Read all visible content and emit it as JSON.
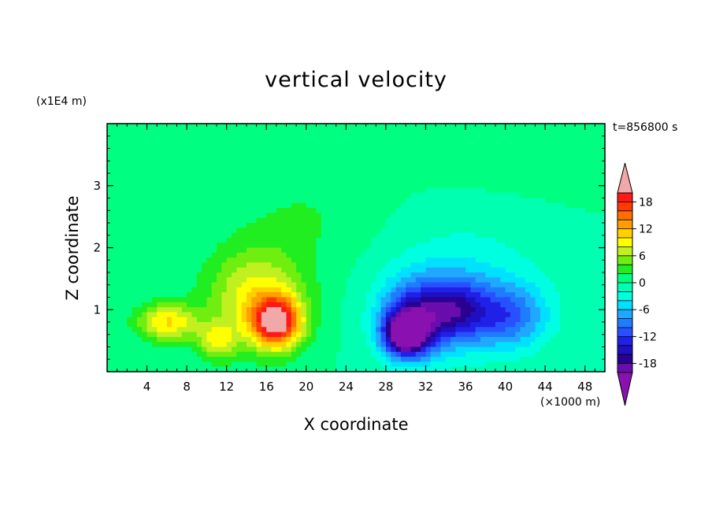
{
  "chart_data": {
    "type": "heatmap",
    "title": "vertical velocity",
    "xlabel": "X coordinate",
    "ylabel": "Z coordinate",
    "x_unit": "(×1000 m)",
    "y_unit": "(x1E4 m)",
    "time_label": "t=856800 s",
    "xlim": [
      0,
      50
    ],
    "ylim": [
      0,
      4
    ],
    "x_ticks": [
      4,
      8,
      12,
      16,
      20,
      24,
      28,
      32,
      36,
      40,
      44,
      48
    ],
    "y_ticks": [
      1,
      2,
      3
    ],
    "colorbar": {
      "levels": [
        -20,
        -18,
        -16,
        -14,
        -12,
        -10,
        -8,
        -6,
        -4,
        -2,
        0,
        2,
        4,
        6,
        8,
        10,
        12,
        14,
        16,
        18,
        20
      ],
      "colors": [
        "#6a0dad",
        "#2a0090",
        "#1e10c0",
        "#2020e8",
        "#2850ff",
        "#1e7cff",
        "#20a8ff",
        "#00e0ff",
        "#00ffe0",
        "#00ffb0",
        "#00ff80",
        "#20ee20",
        "#70ee10",
        "#c0f020",
        "#ffff00",
        "#ffd000",
        "#ffa000",
        "#ff7000",
        "#ff3a00",
        "#ff1818"
      ],
      "under_color": "#8a10b0",
      "over_color": "#f0a8a8",
      "tick_labels": [
        "-18",
        "-12",
        "-6",
        "0",
        "6",
        "12",
        "18"
      ],
      "tick_values": [
        -18,
        -12,
        -6,
        0,
        6,
        12,
        18
      ]
    },
    "features": [
      {
        "x": 17,
        "z": 0.8,
        "peak": 19,
        "sx": 2.4,
        "sz": 0.4
      },
      {
        "x": 15,
        "z": 1.2,
        "peak": 9,
        "sx": 5,
        "sz": 0.8
      },
      {
        "x": 6,
        "z": 0.8,
        "peak": 10,
        "sx": 3,
        "sz": 0.3
      },
      {
        "x": 11,
        "z": 0.5,
        "peak": 7,
        "sx": 2,
        "sz": 0.3
      },
      {
        "x": 20,
        "z": 2.5,
        "peak": 2,
        "sx": 7,
        "sz": 0.8
      },
      {
        "x": 30,
        "z": 0.6,
        "peak": -20,
        "sx": 2.2,
        "sz": 0.35
      },
      {
        "x": 31,
        "z": 0.9,
        "peak": -12,
        "sx": 3.5,
        "sz": 0.6
      },
      {
        "x": 35,
        "z": 1.0,
        "peak": -10,
        "sx": 3,
        "sz": 0.5
      },
      {
        "x": 40,
        "z": 0.9,
        "peak": -9,
        "sx": 4,
        "sz": 0.5
      },
      {
        "x": 36,
        "z": 1.3,
        "peak": -4,
        "sx": 8,
        "sz": 1.1
      },
      {
        "x": 40,
        "z": 3.8,
        "peak": 1.5,
        "sx": 12,
        "sz": 0.8
      }
    ]
  }
}
